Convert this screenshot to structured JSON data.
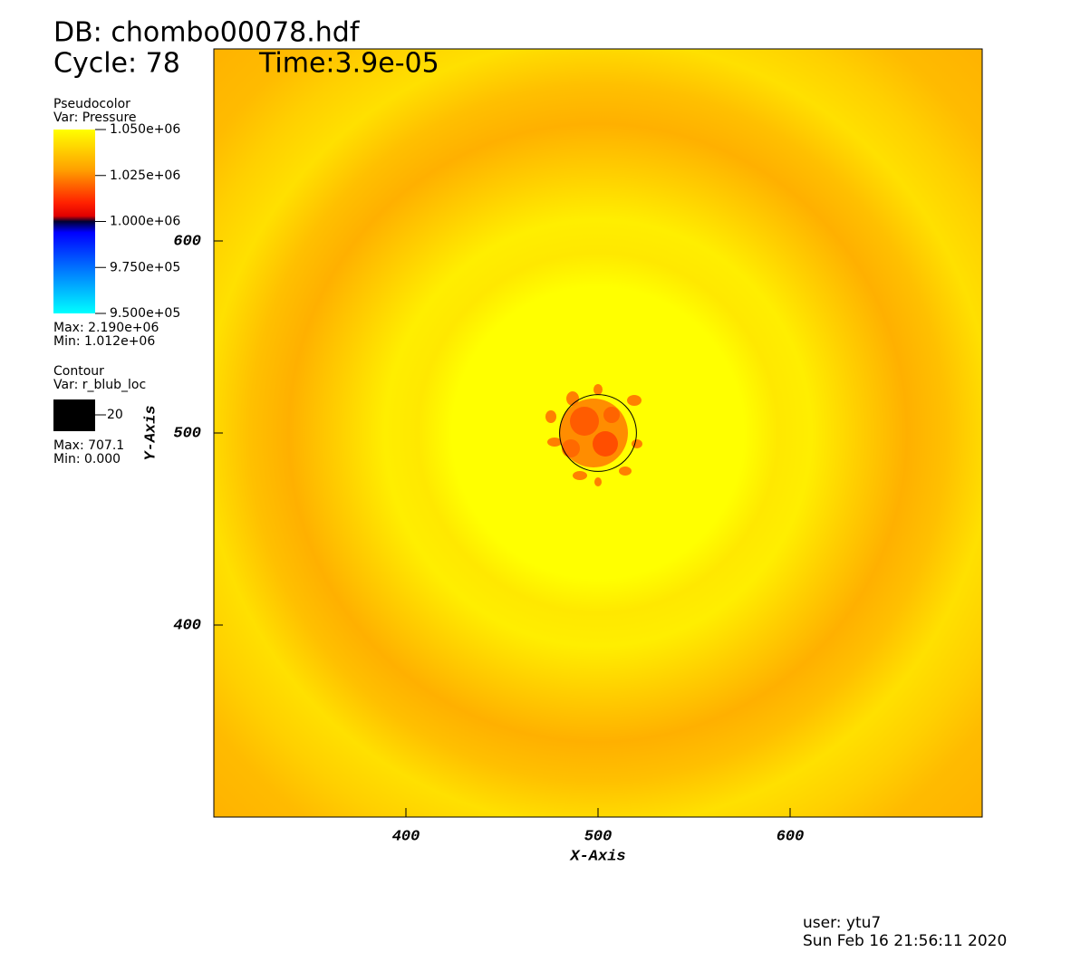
{
  "header": {
    "db": "DB: chombo00078.hdf",
    "cycle": "Cycle: 78",
    "time": "Time:3.9e-05"
  },
  "pseudocolor": {
    "title": "Pseudocolor",
    "var": "Var: Pressure",
    "ticks": [
      "1.050e+06",
      "1.025e+06",
      "1.000e+06",
      "9.750e+05",
      "9.500e+05"
    ],
    "max": "Max: 2.190e+06",
    "min": "Min:  1.012e+06"
  },
  "contour": {
    "title": "Contour",
    "var": "Var: r_blub_loc",
    "level": 20,
    "max": "Max: 707.1",
    "min": "Min: 0.000"
  },
  "plot": {
    "x_label": "X-Axis",
    "y_label": "Y-Axis",
    "xlim": [
      300,
      700
    ],
    "ylim": [
      300,
      700
    ],
    "xticks": [
      400,
      500,
      600
    ],
    "yticks": [
      400,
      500,
      600
    ]
  },
  "footer": {
    "user": "user: ytu7",
    "date": "Sun Feb 16 21:56:11 2020"
  }
}
